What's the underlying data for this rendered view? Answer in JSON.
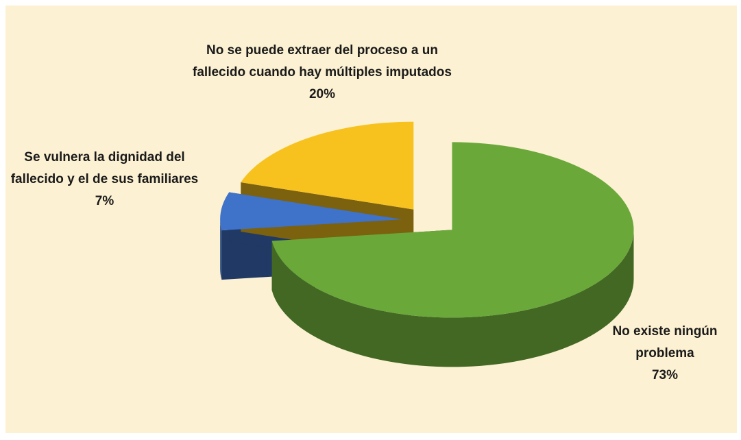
{
  "chart_data": {
    "type": "pie3d",
    "categories": [
      "No existe ningún problema",
      "Se vulnera la dignidad del fallecido y el de sus familiares",
      "No se puede extraer del proceso a un fallecido cuando hay múltiples imputados"
    ],
    "values": [
      73,
      7,
      20
    ],
    "value_labels": [
      "73%",
      "7%",
      "20%"
    ],
    "colors": [
      "#6aa83a",
      "#3f72c9",
      "#f7c21e"
    ],
    "exploded": true
  }
}
